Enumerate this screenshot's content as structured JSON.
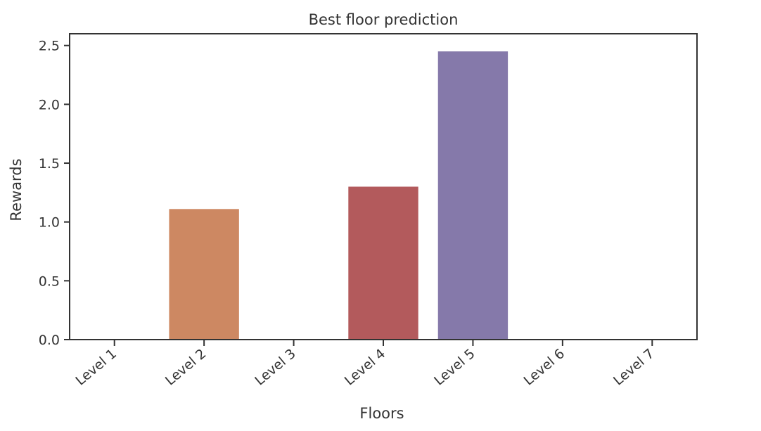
{
  "chart_data": {
    "type": "bar",
    "title": "Best floor prediction",
    "xlabel": "Floors",
    "ylabel": "Rewards",
    "categories": [
      "Level 1",
      "Level 2",
      "Level 3",
      "Level 4",
      "Level 5",
      "Level 6",
      "Level 7"
    ],
    "values": [
      0.0,
      1.11,
      0.0,
      1.3,
      2.45,
      0.0,
      0.0
    ],
    "colors": [
      "#5d7bb5",
      "#cd8862",
      "#6aaa73",
      "#b35a5c",
      "#8579aa",
      "#8c6d5e",
      "#d18ec0"
    ],
    "ylim": [
      0,
      2.6
    ],
    "yticks": [
      "0.0",
      "0.5",
      "1.0",
      "1.5",
      "2.0",
      "2.5"
    ],
    "grid": false,
    "legend": "none"
  }
}
